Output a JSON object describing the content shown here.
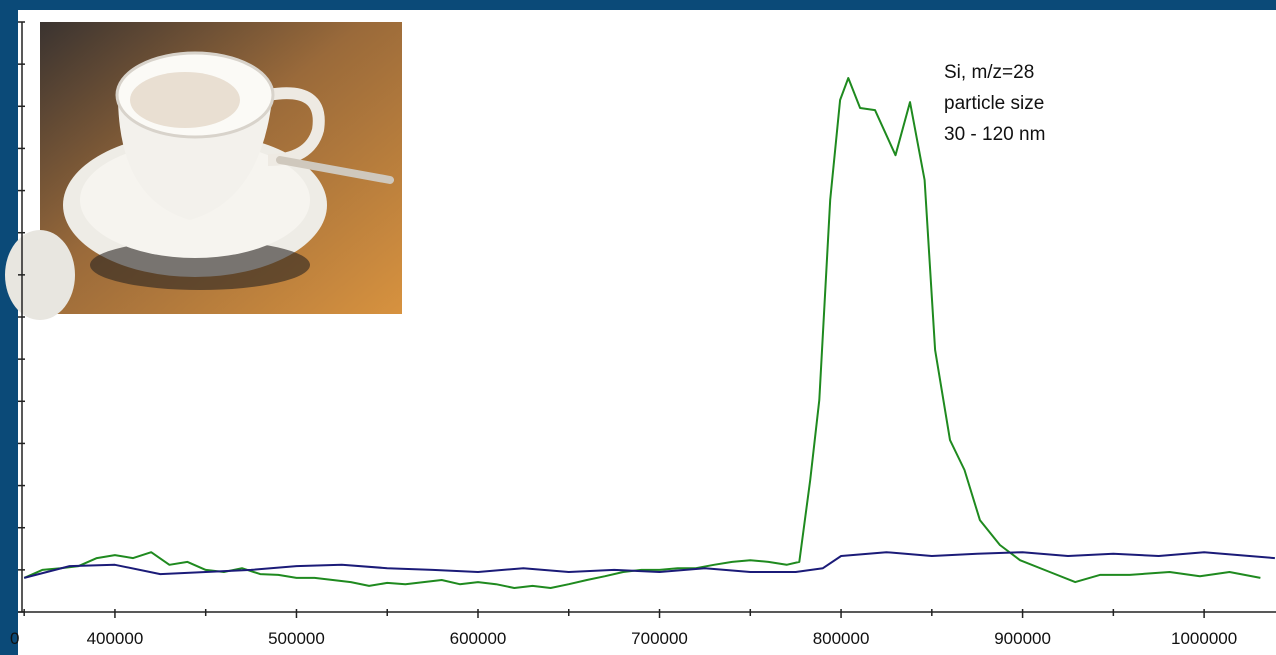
{
  "chart_data": {
    "type": "line",
    "annotation": [
      "Si, m/z=28",
      "particle size",
      "30 - 120 nm"
    ],
    "x_start_label": "0",
    "xlim": [
      346600,
      1039600
    ],
    "xticks": [
      400000,
      500000,
      600000,
      700000,
      800000,
      900000,
      1000000
    ],
    "x_minor_ticks": [
      350000,
      450000,
      550000,
      650000,
      750000,
      850000,
      950000
    ],
    "ylim": [
      0,
      14
    ],
    "y_tick_marks": [
      0,
      1,
      2,
      3,
      4,
      5,
      6,
      7,
      8,
      9,
      10,
      11,
      12,
      13,
      14
    ],
    "series": [
      {
        "color": "#1f8a1f",
        "x": [
          350000,
          360000,
          370000,
          380000,
          390000,
          400000,
          410000,
          420000,
          430000,
          440000,
          450000,
          460000,
          470000,
          480000,
          490000,
          500000,
          510000,
          520000,
          530000,
          540000,
          550000,
          560000,
          570000,
          580000,
          590000,
          600000,
          610000,
          620000,
          630000,
          640000,
          650000,
          660000,
          670000,
          680000,
          690000,
          700000,
          710000,
          720000,
          730000,
          740000,
          750000,
          760000,
          770000,
          777000,
          783000,
          788000,
          794000,
          799500,
          804000,
          810500,
          818700,
          830000,
          838000,
          846000,
          851800,
          860000,
          868000,
          876500,
          887500,
          898600,
          915000,
          929000,
          942600,
          959000,
          981000,
          997700,
          1014000,
          1031000
        ],
        "values": [
          0.81,
          1.0,
          1.04,
          1.09,
          1.28,
          1.35,
          1.28,
          1.42,
          1.12,
          1.19,
          1.0,
          0.95,
          1.04,
          0.9,
          0.88,
          0.81,
          0.81,
          0.76,
          0.71,
          0.62,
          0.69,
          0.66,
          0.71,
          0.76,
          0.66,
          0.71,
          0.66,
          0.57,
          0.62,
          0.57,
          0.66,
          0.76,
          0.85,
          0.95,
          1.0,
          1.0,
          1.04,
          1.04,
          1.12,
          1.19,
          1.23,
          1.19,
          1.12,
          1.19,
          3.13,
          5.03,
          9.78,
          12.15,
          12.67,
          11.96,
          11.91,
          10.84,
          12.1,
          10.25,
          6.22,
          4.08,
          3.37,
          2.18,
          1.59,
          1.23,
          0.95,
          0.71,
          0.88,
          0.88,
          0.95,
          0.85,
          0.95,
          0.81
        ]
      },
      {
        "color": "#1b1b78",
        "x": [
          350000,
          375000,
          400000,
          425000,
          450000,
          475000,
          500000,
          525000,
          550000,
          575000,
          600000,
          625000,
          650000,
          675000,
          700000,
          725000,
          750000,
          775000,
          790000,
          800000,
          825000,
          850000,
          875000,
          900000,
          925000,
          950000,
          975000,
          1000000,
          1025000,
          1039000
        ],
        "values": [
          0.81,
          1.09,
          1.12,
          0.9,
          0.95,
          1.0,
          1.09,
          1.12,
          1.04,
          1.0,
          0.95,
          1.04,
          0.95,
          1.0,
          0.95,
          1.04,
          0.95,
          0.95,
          1.04,
          1.33,
          1.42,
          1.33,
          1.38,
          1.42,
          1.33,
          1.38,
          1.33,
          1.42,
          1.33,
          1.28
        ]
      }
    ]
  }
}
